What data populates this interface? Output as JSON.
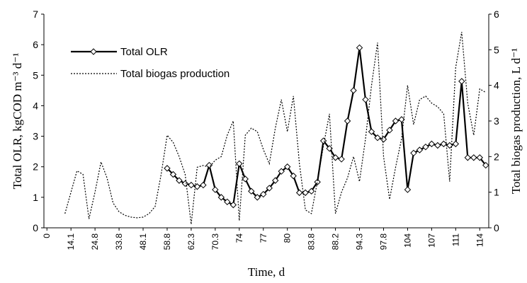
{
  "chart_data": {
    "type": "line",
    "x_label": "Time, d",
    "y_label": "Total OLR, kgCOD m⁻³ d⁻¹",
    "y2_label": "Total biogas production, L d⁻¹",
    "categories": [
      "0",
      null,
      null,
      null,
      "14.1",
      null,
      null,
      null,
      "24.8",
      null,
      null,
      null,
      "33.8",
      null,
      null,
      null,
      "48.1",
      null,
      null,
      null,
      "58.8",
      null,
      null,
      null,
      "62.3",
      null,
      null,
      null,
      "70.3",
      null,
      null,
      null,
      "74",
      null,
      null,
      null,
      "77",
      null,
      null,
      null,
      "80",
      null,
      null,
      null,
      "83.8",
      null,
      null,
      null,
      "88.2",
      null,
      null,
      null,
      "94.3",
      null,
      null,
      null,
      "97.8",
      null,
      null,
      null,
      "104",
      null,
      null,
      null,
      "107",
      null,
      null,
      null,
      "111",
      null,
      null,
      null,
      "114",
      null
    ],
    "ylim": [
      0,
      7
    ],
    "yticks": [
      0,
      1,
      2,
      3,
      4,
      5,
      6,
      7
    ],
    "y2lim": [
      0,
      6
    ],
    "y2ticks": [
      0,
      1,
      2,
      3,
      4,
      5,
      6
    ],
    "series": [
      {
        "name": "Total OLR",
        "color": "#000000",
        "style": "solid-diamond",
        "values": [
          null,
          null,
          null,
          null,
          null,
          null,
          null,
          null,
          null,
          null,
          null,
          null,
          null,
          null,
          null,
          null,
          null,
          null,
          null,
          null,
          1.95,
          1.75,
          1.55,
          1.45,
          1.4,
          1.35,
          1.4,
          2.05,
          1.25,
          1.0,
          0.85,
          0.75,
          2.1,
          1.6,
          1.2,
          1.0,
          1.1,
          1.3,
          1.55,
          1.85,
          2.0,
          1.7,
          1.15,
          1.15,
          1.2,
          1.5,
          2.85,
          2.6,
          2.3,
          2.25,
          3.5,
          4.5,
          5.9,
          4.2,
          3.15,
          2.95,
          2.9,
          3.2,
          3.5,
          3.55,
          1.25,
          2.45,
          2.55,
          2.65,
          2.75,
          2.7,
          2.75,
          2.7,
          2.75,
          4.8,
          2.3,
          2.3,
          2.3,
          2.05
        ]
      },
      {
        "name": "Total biogas production",
        "color": "#000000",
        "style": "dotted",
        "axis": "y2",
        "values": [
          null,
          null,
          null,
          0.4,
          1.0,
          1.6,
          1.5,
          0.25,
          1.0,
          1.85,
          1.4,
          0.7,
          0.45,
          0.35,
          0.3,
          0.28,
          0.3,
          0.4,
          0.6,
          1.5,
          2.6,
          2.4,
          2.0,
          1.5,
          0.1,
          1.7,
          1.75,
          1.7,
          1.9,
          2.0,
          2.6,
          3.0,
          0.2,
          2.6,
          2.8,
          2.7,
          2.2,
          1.8,
          2.8,
          3.6,
          2.7,
          3.7,
          1.8,
          0.5,
          0.4,
          1.3,
          2.3,
          3.2,
          0.4,
          1.0,
          1.4,
          2.0,
          1.3,
          2.5,
          4.0,
          5.2,
          2.0,
          0.8,
          1.7,
          2.5,
          4.0,
          2.9,
          3.6,
          3.7,
          3.5,
          3.4,
          3.2,
          1.3,
          4.5,
          5.5,
          3.5,
          2.6,
          3.9,
          3.8
        ]
      }
    ]
  }
}
